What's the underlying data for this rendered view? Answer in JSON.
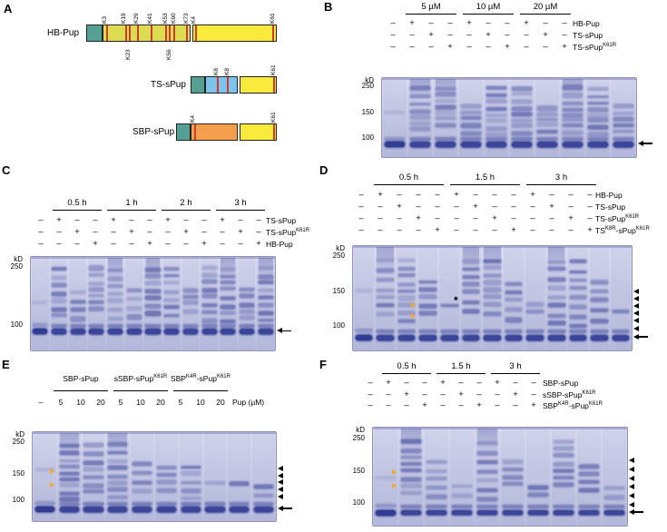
{
  "colors": {
    "gel_bg_top": "#d8daee",
    "gel_bg_bottom": "#b9bede",
    "gel_border": "#9094bc",
    "band": "#2c3690",
    "teal": "#55a093",
    "hb_body": "#dcdc50",
    "pup_yellow": "#f8eb3c",
    "ts_blue": "#7cc4ee",
    "sbp_orange": "#f59e4c",
    "stripe_red": "#cf3a2e",
    "yellow_arrowhead": "#f0a92a"
  },
  "panels": {
    "A": {
      "label": "A",
      "constructs": [
        {
          "name": "HB-Pup",
          "top_labels": [
            "K3",
            "K19",
            "K29",
            "K41",
            "K53",
            "K60",
            "K73"
          ],
          "pup_top_labels": [
            "K4",
            "K61"
          ],
          "bottom_labels": [
            "K23",
            "K56"
          ]
        },
        {
          "name": "TS-sPup",
          "top_labels": [
            "K8",
            "K8"
          ],
          "pup_top_labels": [
            "K61"
          ],
          "bottom_labels": []
        },
        {
          "name": "SBP-sPup",
          "top_labels": [
            "K4"
          ],
          "pup_top_labels": [
            "K61"
          ],
          "bottom_labels": []
        }
      ]
    },
    "B": {
      "label": "B",
      "groups": [
        "5 µM",
        "10 µM",
        "20 µM"
      ],
      "rows": [
        {
          "label": [
            {
              "t": "HB-Pup"
            }
          ],
          "signs": [
            "–",
            "+",
            "–",
            "–",
            "+",
            "–",
            "–",
            "+",
            "–",
            "–"
          ]
        },
        {
          "label": [
            {
              "t": "TS-sPup"
            }
          ],
          "signs": [
            "–",
            "–",
            "+",
            "–",
            "–",
            "+",
            "–",
            "–",
            "+",
            "–"
          ]
        },
        {
          "label": [
            {
              "t": "TS-sPup"
            },
            {
              "t": "K61R",
              "sup": true
            }
          ],
          "signs": [
            "–",
            "–",
            "–",
            "+",
            "–",
            "–",
            "+",
            "–",
            "–",
            "+"
          ]
        }
      ],
      "kd_label": "kD",
      "markers": [
        "250",
        "150",
        "100"
      ]
    },
    "C": {
      "label": "C",
      "groups": [
        "0.5 h",
        "1 h",
        "2 h",
        "3 h"
      ],
      "rows": [
        {
          "label": [
            {
              "t": "TS-sPup"
            }
          ],
          "signs": [
            "–",
            "+",
            "–",
            "–",
            "+",
            "–",
            "–",
            "+",
            "–",
            "–",
            "+",
            "–",
            "–"
          ]
        },
        {
          "label": [
            {
              "t": "TS-sPup"
            },
            {
              "t": "K61R",
              "sup": true
            }
          ],
          "signs": [
            "–",
            "–",
            "+",
            "–",
            "–",
            "+",
            "–",
            "–",
            "+",
            "–",
            "–",
            "+",
            "–"
          ]
        },
        {
          "label": [
            {
              "t": "HB-Pup"
            }
          ],
          "signs": [
            "–",
            "–",
            "–",
            "+",
            "–",
            "–",
            "+",
            "–",
            "–",
            "+",
            "–",
            "–",
            "+"
          ]
        }
      ],
      "kd_label": "kD",
      "markers": [
        "250",
        "100"
      ]
    },
    "D": {
      "label": "D",
      "groups": [
        "0.5 h",
        "1.5 h",
        "3 h"
      ],
      "rows": [
        {
          "label": [
            {
              "t": "HB-Pup"
            }
          ],
          "signs": [
            "–",
            "+",
            "–",
            "–",
            "–",
            "+",
            "–",
            "–",
            "–",
            "+",
            "–",
            "–",
            "–"
          ]
        },
        {
          "label": [
            {
              "t": "TS-sPup"
            }
          ],
          "signs": [
            "–",
            "–",
            "+",
            "–",
            "–",
            "–",
            "+",
            "–",
            "–",
            "–",
            "+",
            "–",
            "–"
          ]
        },
        {
          "label": [
            {
              "t": "TS-sPup"
            },
            {
              "t": "K61R",
              "sup": true
            }
          ],
          "signs": [
            "–",
            "–",
            "–",
            "+",
            "–",
            "–",
            "–",
            "+",
            "–",
            "–",
            "–",
            "+",
            "–"
          ]
        },
        {
          "label": [
            {
              "t": "TS"
            },
            {
              "t": "K8R",
              "sup": true
            },
            {
              "t": "-sPup"
            },
            {
              "t": "K61R",
              "sup": true
            }
          ],
          "signs": [
            "–",
            "–",
            "–",
            "–",
            "+",
            "–",
            "–",
            "–",
            "+",
            "–",
            "–",
            "–",
            "+"
          ]
        }
      ],
      "kd_label": "kD",
      "markers": [
        "250",
        "150",
        "100"
      ],
      "asterisk": "*"
    },
    "E": {
      "label": "E",
      "group_headers": [
        [
          {
            "t": "SBP-sPup"
          }
        ],
        [
          {
            "t": "sSBP-sPup"
          },
          {
            "t": "K61R",
            "sup": true
          }
        ],
        [
          {
            "t": "SBP"
          },
          {
            "t": "K4R",
            "sup": true
          },
          {
            "t": "-sPup"
          },
          {
            "t": "K61R",
            "sup": true
          }
        ]
      ],
      "lane_labels": [
        "–",
        "5",
        "10",
        "20",
        "5",
        "10",
        "20",
        "5",
        "10",
        "20"
      ],
      "unit_label": "Pup (µM)",
      "kd_label": "kD",
      "markers": [
        "250",
        "150",
        "100"
      ]
    },
    "F": {
      "label": "F",
      "groups": [
        "0.5 h",
        "1.5 h",
        "3 h"
      ],
      "rows": [
        {
          "label": [
            {
              "t": "SBP-sPup"
            }
          ],
          "signs": [
            "–",
            "+",
            "–",
            "–",
            "+",
            "–",
            "–",
            "+",
            "–",
            "–"
          ]
        },
        {
          "label": [
            {
              "t": "sSBP-sPup"
            },
            {
              "t": "K61R",
              "sup": true
            }
          ],
          "signs": [
            "–",
            "–",
            "+",
            "–",
            "–",
            "+",
            "–",
            "–",
            "+",
            "–"
          ]
        },
        {
          "label": [
            {
              "t": "SBP"
            },
            {
              "t": "K4R",
              "sup": true
            },
            {
              "t": "-sPup"
            },
            {
              "t": "K61R",
              "sup": true
            }
          ],
          "signs": [
            "–",
            "–",
            "–",
            "+",
            "–",
            "–",
            "+",
            "–",
            "–",
            "+"
          ]
        }
      ],
      "kd_label": "kD",
      "markers": [
        "250",
        "150",
        "100"
      ]
    }
  }
}
